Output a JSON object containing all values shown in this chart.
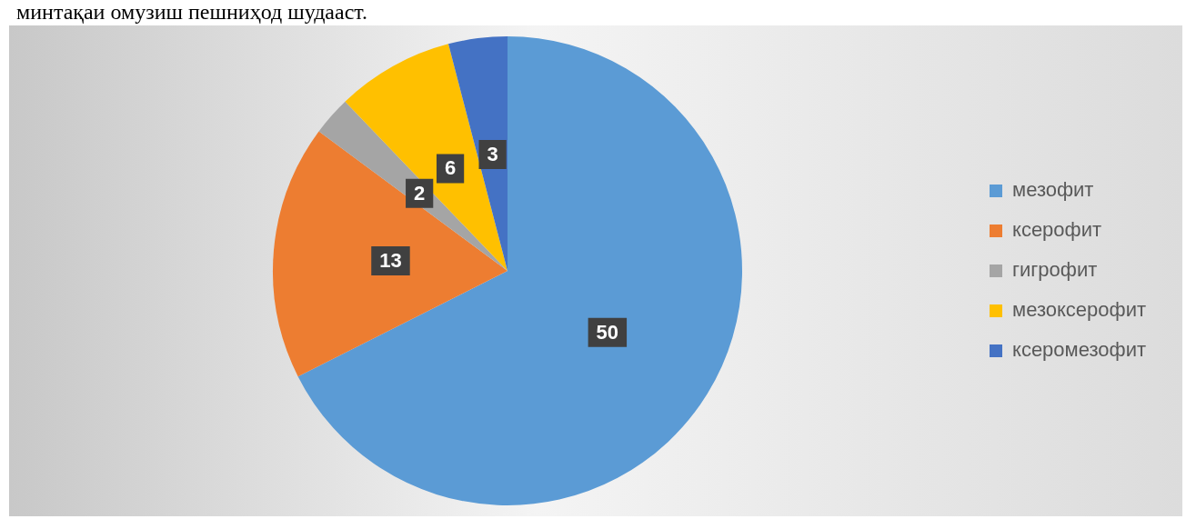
{
  "chart_data": {
    "type": "pie",
    "categories": [
      "мезофит",
      "ксерофит",
      "гигрофит",
      "мезоксерофит",
      "ксеромезофит"
    ],
    "values": [
      50,
      13,
      2,
      6,
      3
    ],
    "colors": [
      "#5b9bd5",
      "#ed7d31",
      "#a5a5a5",
      "#ffc000",
      "#4472c4"
    ],
    "data_labels": true,
    "legend": "right",
    "annotations": [
      "минтақаи омузиш пешниҳод шудааст."
    ]
  }
}
